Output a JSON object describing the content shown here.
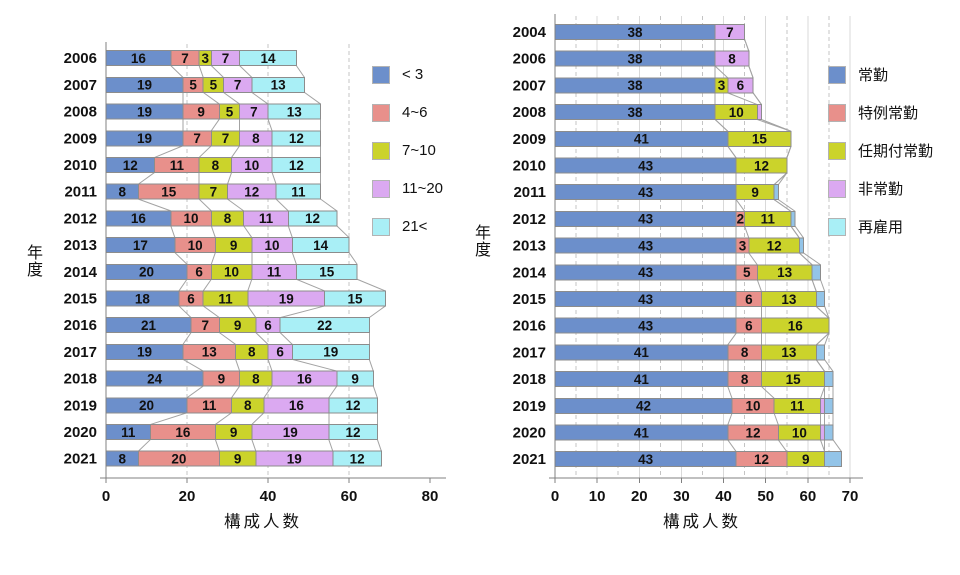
{
  "figure": {
    "background": "#ffffff",
    "axis_color": "#808080",
    "connector_color": "#a3a3a3",
    "bar_border_color": "#8c8c8c",
    "label_color": "#111111"
  },
  "chart_data": [
    {
      "id": "left-chart-group-size",
      "type": "bar",
      "orientation": "horizontal",
      "stacked": true,
      "xlabel": "構成人数",
      "ylabel": "年度",
      "xlim": [
        0,
        80
      ],
      "xticks": [
        0,
        20,
        40,
        60,
        80
      ],
      "grid": {
        "solid": [],
        "dashed": [
          20,
          40,
          60
        ]
      },
      "legend_position": "right-top",
      "categories": [
        "2006",
        "2007",
        "2008",
        "2009",
        "2010",
        "2011",
        "2012",
        "2013",
        "2014",
        "2015",
        "2016",
        "2017",
        "2018",
        "2019",
        "2020",
        "2021"
      ],
      "series": [
        {
          "name": "< 3",
          "color": "#6C8FCB",
          "values": [
            16,
            19,
            19,
            19,
            12,
            8,
            16,
            17,
            20,
            18,
            21,
            19,
            24,
            20,
            11,
            8
          ]
        },
        {
          "name": "4~6",
          "color": "#E8908B",
          "values": [
            7,
            5,
            9,
            7,
            11,
            15,
            10,
            10,
            6,
            6,
            7,
            13,
            9,
            11,
            16,
            20
          ]
        },
        {
          "name": "7~10",
          "color": "#CBD32B",
          "values": [
            3,
            5,
            5,
            7,
            8,
            7,
            8,
            9,
            10,
            11,
            9,
            8,
            8,
            8,
            9,
            9
          ]
        },
        {
          "name": "11~20",
          "color": "#DBA9F1",
          "values": [
            7,
            7,
            7,
            8,
            10,
            12,
            11,
            10,
            11,
            19,
            6,
            6,
            16,
            16,
            19,
            19
          ]
        },
        {
          "name": "21<",
          "color": "#A9EFF6",
          "values": [
            14,
            13,
            13,
            12,
            12,
            11,
            12,
            14,
            15,
            15,
            22,
            19,
            9,
            12,
            12,
            12
          ]
        }
      ]
    },
    {
      "id": "right-chart-employment-type",
      "type": "bar",
      "orientation": "horizontal",
      "stacked": true,
      "xlabel": "構成人数",
      "ylabel": "年度",
      "xlim": [
        0,
        70
      ],
      "xticks": [
        0,
        10,
        20,
        30,
        40,
        50,
        60,
        70
      ],
      "grid": {
        "solid": [
          10,
          20,
          30,
          40,
          50,
          60,
          70
        ],
        "dashed": [
          5,
          15,
          25,
          35,
          45,
          55,
          65
        ]
      },
      "legend_position": "right-top",
      "categories": [
        "2004",
        "2006",
        "2007",
        "2008",
        "2009",
        "2010",
        "2011",
        "2012",
        "2013",
        "2014",
        "2015",
        "2016",
        "2017",
        "2018",
        "2019",
        "2020",
        "2021"
      ],
      "series": [
        {
          "name": "常勤",
          "color": "#6C8FCB",
          "values": [
            38,
            38,
            38,
            38,
            41,
            43,
            43,
            43,
            43,
            43,
            43,
            43,
            41,
            41,
            42,
            41,
            43
          ]
        },
        {
          "name": "特例常勤",
          "color": "#E8908B",
          "values": [
            0,
            0,
            0,
            0,
            0,
            0,
            0,
            2,
            3,
            5,
            6,
            6,
            8,
            8,
            10,
            12,
            12
          ]
        },
        {
          "name": "任期付常勤",
          "color": "#CBD32B",
          "values": [
            0,
            0,
            3,
            10,
            15,
            12,
            9,
            11,
            12,
            13,
            13,
            16,
            13,
            15,
            11,
            10,
            9
          ]
        },
        {
          "name": "非常勤",
          "color": "#DBA9F1",
          "values": [
            7,
            8,
            6,
            1,
            0,
            0,
            0,
            0,
            0,
            0,
            0,
            0,
            0,
            0,
            1,
            1,
            0
          ],
          "labels": [
            "7",
            "8",
            "6",
            "",
            "",
            "",
            "",
            "",
            "",
            "",
            "",
            "",
            "",
            "",
            "",
            "",
            ""
          ]
        },
        {
          "name": "再雇用",
          "color": "#93C4E8",
          "swatch": "#A9EFF6",
          "values": [
            0,
            0,
            0,
            0,
            0,
            0,
            1,
            1,
            1,
            2,
            2,
            0,
            2,
            2,
            2,
            2,
            4
          ],
          "labels": [
            "",
            "",
            "",
            "",
            "",
            "",
            "",
            "",
            "",
            "",
            "",
            "",
            "",
            "",
            "",
            "",
            ""
          ]
        }
      ]
    }
  ]
}
